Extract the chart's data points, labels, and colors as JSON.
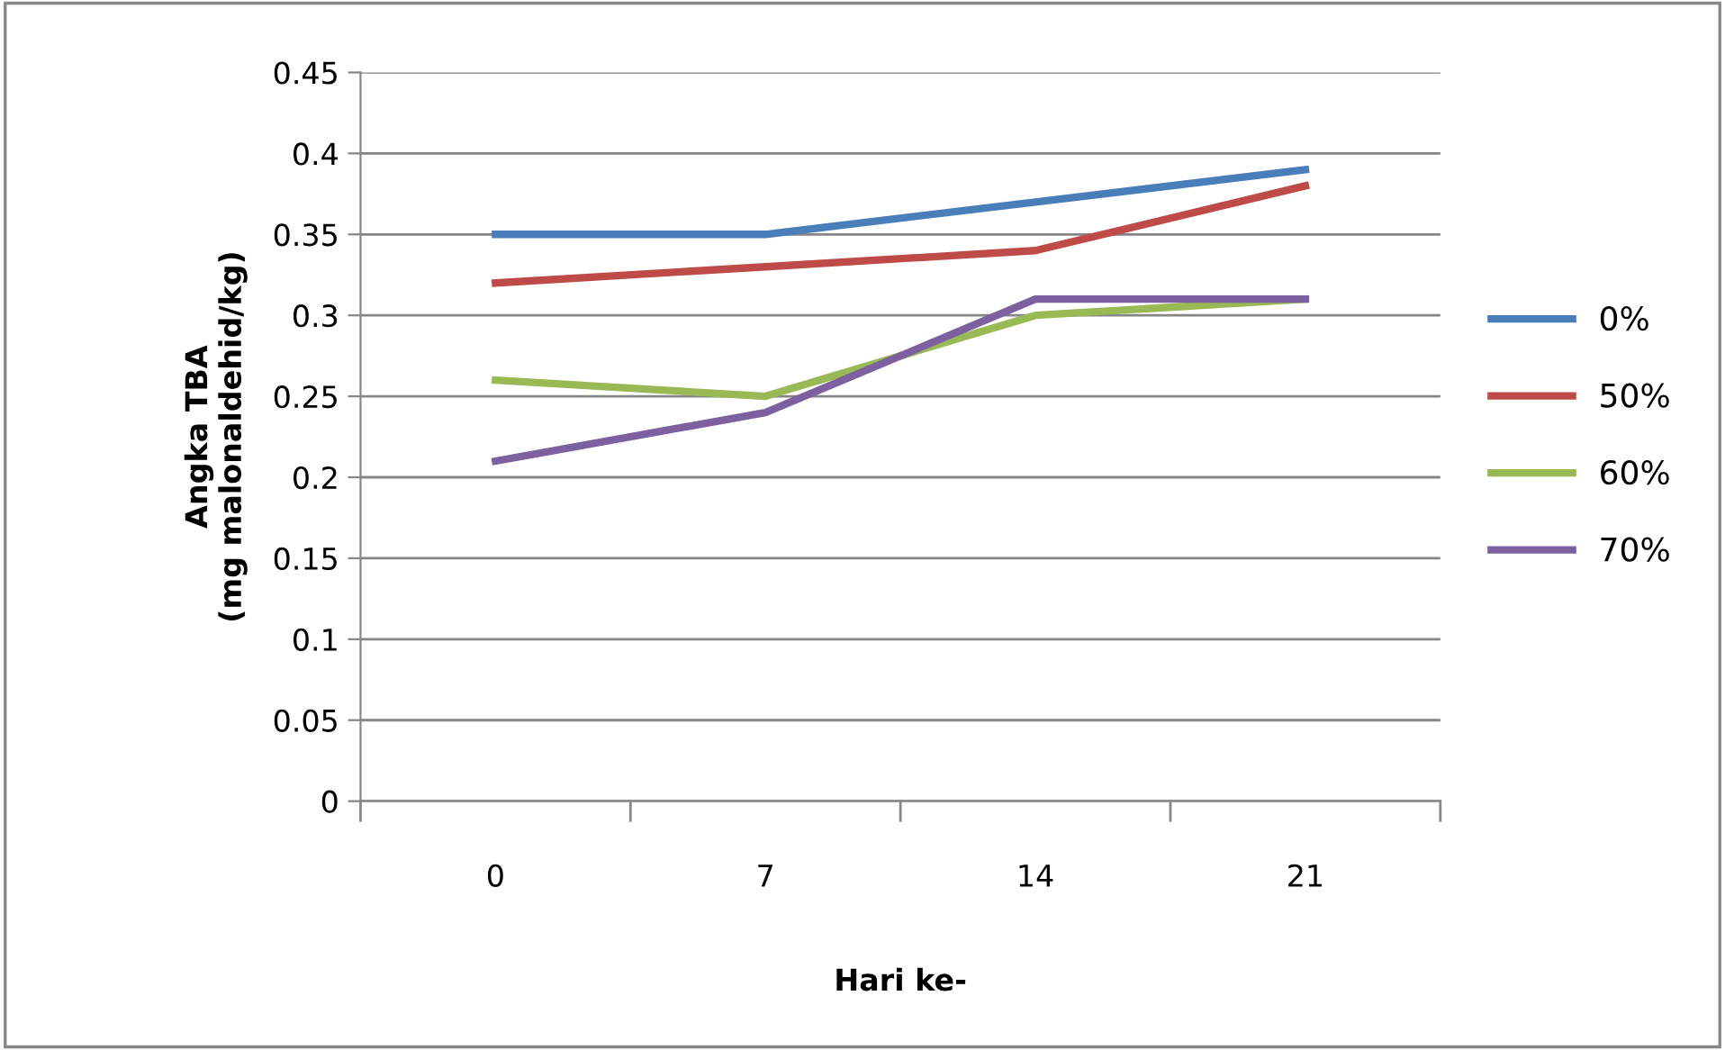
{
  "chart_data": {
    "type": "line",
    "xlabel": "Hari ke-",
    "ylabel": "Angka TBA\n(mg malonaldehid/kg)",
    "categories": [
      "0",
      "7",
      "14",
      "21"
    ],
    "series": [
      {
        "name": "0%",
        "color": "#4a7ebb",
        "values": [
          0.35,
          0.35,
          0.37,
          0.39
        ]
      },
      {
        "name": "50%",
        "color": "#be4b48",
        "values": [
          0.32,
          0.33,
          0.34,
          0.38
        ]
      },
      {
        "name": "60%",
        "color": "#98b954",
        "values": [
          0.26,
          0.25,
          0.3,
          0.31
        ]
      },
      {
        "name": "70%",
        "color": "#7d60a0",
        "values": [
          0.21,
          0.24,
          0.31,
          0.31
        ]
      }
    ],
    "ylim": [
      0,
      0.45
    ],
    "yticks": [
      {
        "value": 0,
        "label": "0"
      },
      {
        "value": 0.05,
        "label": "0.05"
      },
      {
        "value": 0.1,
        "label": "0.1"
      },
      {
        "value": 0.15,
        "label": "0.15"
      },
      {
        "value": 0.2,
        "label": "0.2"
      },
      {
        "value": 0.25,
        "label": "0.25"
      },
      {
        "value": 0.3,
        "label": "0.3"
      },
      {
        "value": 0.35,
        "label": "0.35"
      },
      {
        "value": 0.4,
        "label": "0.4"
      },
      {
        "value": 0.45,
        "label": "0.45"
      }
    ],
    "grid": "y",
    "legend": "right",
    "marker": "none",
    "line_style": "solid"
  }
}
